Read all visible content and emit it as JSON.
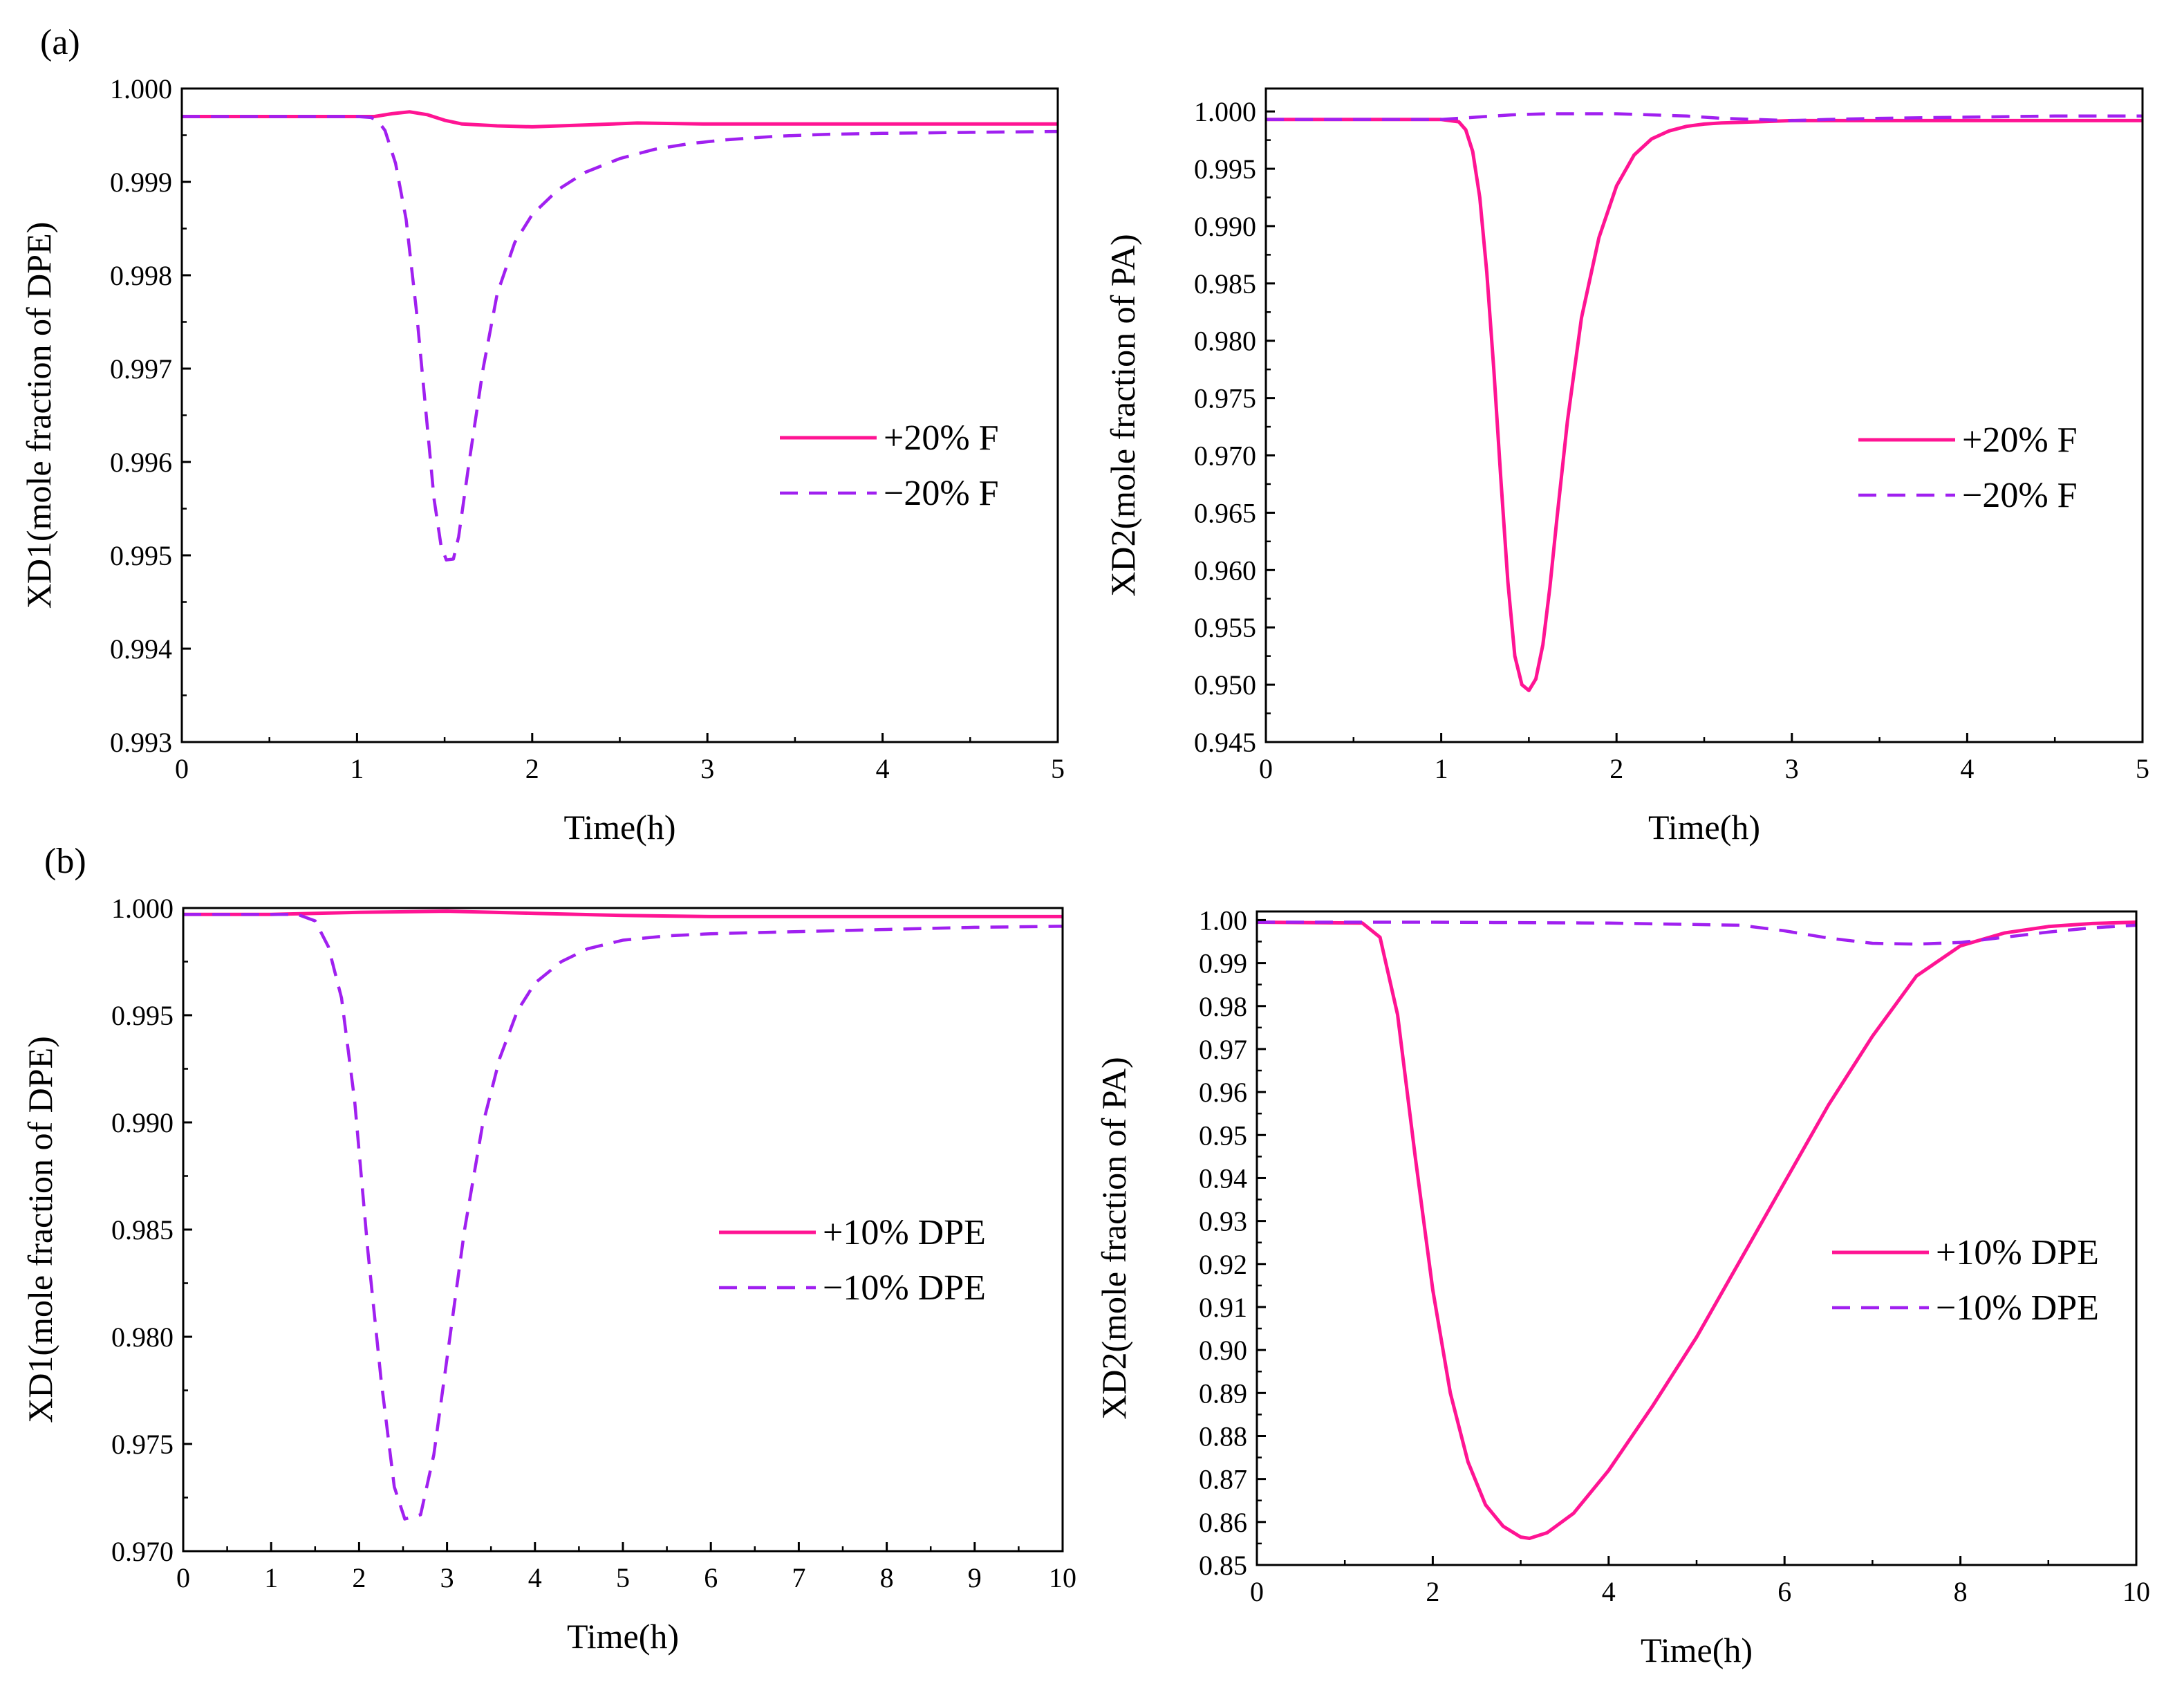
{
  "figure": {
    "panel_labels": [
      "(a)",
      "(b)"
    ]
  },
  "colors": {
    "solid": "#ff1493",
    "dashed": "#a020f0",
    "axis": "#000000"
  },
  "chart_data": [
    {
      "id": "a-left",
      "type": "line",
      "xlabel": "Time(h)",
      "ylabel": "XD1(mole fraction of  DPE)",
      "xlim": [
        0,
        5
      ],
      "ylim": [
        0.993,
        1.0
      ],
      "xticks": [
        0,
        1,
        2,
        3,
        4,
        5
      ],
      "xtick_labels": [
        "0",
        "1",
        "2",
        "3",
        "4",
        "5"
      ],
      "yticks": [
        0.993,
        0.994,
        0.995,
        0.996,
        0.997,
        0.998,
        0.999,
        1.0
      ],
      "ytick_labels": [
        "0.993",
        "0.994",
        "0.995",
        "0.996",
        "0.997",
        "0.998",
        "0.999",
        "1.000"
      ],
      "legend_position": "center-right",
      "series": [
        {
          "name": "+20% F",
          "style": "solid",
          "x": [
            0,
            1.0,
            1.1,
            1.2,
            1.3,
            1.4,
            1.5,
            1.6,
            1.8,
            2.0,
            2.3,
            2.6,
            3.0,
            3.5,
            4.0,
            5.0
          ],
          "y": [
            0.9997,
            0.9997,
            0.9997,
            0.99973,
            0.99975,
            0.99972,
            0.99966,
            0.99962,
            0.9996,
            0.99959,
            0.99961,
            0.99963,
            0.99962,
            0.99962,
            0.99962,
            0.99962
          ]
        },
        {
          "name": "−20% F",
          "style": "dashed",
          "x": [
            0,
            1.0,
            1.08,
            1.12,
            1.16,
            1.22,
            1.28,
            1.34,
            1.4,
            1.44,
            1.48,
            1.51,
            1.55,
            1.58,
            1.64,
            1.72,
            1.8,
            1.9,
            2.0,
            2.15,
            2.3,
            2.5,
            2.7,
            2.9,
            3.1,
            3.4,
            3.7,
            4.0,
            4.5,
            5.0
          ],
          "y": [
            0.9997,
            0.9997,
            0.99969,
            0.99965,
            0.99955,
            0.9992,
            0.9986,
            0.9976,
            0.9964,
            0.9956,
            0.9951,
            0.99495,
            0.99496,
            0.9952,
            0.996,
            0.997,
            0.9978,
            0.99835,
            0.99865,
            0.99892,
            0.9991,
            0.99925,
            0.99935,
            0.99941,
            0.99945,
            0.99949,
            0.99951,
            0.99952,
            0.99953,
            0.99954
          ]
        }
      ]
    },
    {
      "id": "a-right",
      "type": "line",
      "xlabel": "Time(h)",
      "ylabel": "XD2(mole fraction of  PA)",
      "xlim": [
        0,
        5
      ],
      "ylim": [
        0.945,
        1.002
      ],
      "xticks": [
        0,
        1,
        2,
        3,
        4,
        5
      ],
      "xtick_labels": [
        "0",
        "1",
        "2",
        "3",
        "4",
        "5"
      ],
      "yticks": [
        0.945,
        0.95,
        0.955,
        0.96,
        0.965,
        0.97,
        0.975,
        0.98,
        0.985,
        0.99,
        0.995,
        1.0
      ],
      "ytick_labels": [
        "0.945",
        "0.950",
        "0.955",
        "0.960",
        "0.965",
        "0.970",
        "0.975",
        "0.980",
        "0.985",
        "0.990",
        "0.995",
        "1.000"
      ],
      "legend_position": "center-right",
      "series": [
        {
          "name": "+20% F",
          "style": "solid",
          "x": [
            0,
            1.0,
            1.1,
            1.14,
            1.18,
            1.22,
            1.26,
            1.3,
            1.34,
            1.38,
            1.42,
            1.46,
            1.5,
            1.54,
            1.58,
            1.62,
            1.66,
            1.72,
            1.8,
            1.9,
            2.0,
            2.1,
            2.2,
            2.3,
            2.4,
            2.5,
            2.6,
            2.8,
            3.0,
            3.5,
            4.0,
            5.0
          ],
          "y": [
            0.9993,
            0.9993,
            0.9991,
            0.9984,
            0.9965,
            0.9925,
            0.986,
            0.9775,
            0.968,
            0.959,
            0.9525,
            0.95,
            0.9495,
            0.9505,
            0.9535,
            0.9585,
            0.9645,
            0.973,
            0.982,
            0.989,
            0.9935,
            0.9962,
            0.9976,
            0.9983,
            0.9987,
            0.9989,
            0.999,
            0.9991,
            0.9992,
            0.9992,
            0.9992,
            0.9992
          ]
        },
        {
          "name": "−20% F",
          "style": "dashed",
          "x": [
            0,
            1.0,
            1.2,
            1.4,
            1.6,
            1.8,
            2.0,
            2.2,
            2.4,
            2.6,
            2.8,
            3.0,
            3.2,
            3.5,
            4.0,
            4.5,
            5.0
          ],
          "y": [
            0.9993,
            0.9993,
            0.9995,
            0.9997,
            0.9998,
            0.9998,
            0.9998,
            0.9997,
            0.9996,
            0.9994,
            0.9993,
            0.9992,
            0.9993,
            0.9994,
            0.9995,
            0.9996,
            0.9996
          ]
        }
      ]
    },
    {
      "id": "b-left",
      "type": "line",
      "xlabel": "Time(h)",
      "ylabel": "XD1(mole fraction of  DPE)",
      "xlim": [
        0,
        10
      ],
      "ylim": [
        0.97,
        1.0
      ],
      "xticks": [
        0,
        1,
        2,
        3,
        4,
        5,
        6,
        7,
        8,
        9,
        10
      ],
      "xtick_labels": [
        "0",
        "1",
        "2",
        "3",
        "4",
        "5",
        "6",
        "7",
        "8",
        "9",
        "10"
      ],
      "yticks": [
        0.97,
        0.975,
        0.98,
        0.985,
        0.99,
        0.995,
        1.0
      ],
      "ytick_labels": [
        "0.970",
        "0.975",
        "0.980",
        "0.985",
        "0.990",
        "0.995",
        "1.000"
      ],
      "legend_position": "center-right",
      "series": [
        {
          "name": "+10% DPE",
          "style": "solid",
          "x": [
            0,
            1.0,
            2.0,
            3.0,
            4.0,
            5.0,
            6.0,
            8.0,
            10.0
          ],
          "y": [
            0.9997,
            0.9997,
            0.9998,
            0.99985,
            0.99975,
            0.99965,
            0.9996,
            0.9996,
            0.9996
          ]
        },
        {
          "name": "−10% DPE",
          "style": "dashed",
          "x": [
            0,
            1.3,
            1.5,
            1.65,
            1.8,
            1.95,
            2.1,
            2.25,
            2.4,
            2.52,
            2.7,
            2.85,
            3.0,
            3.2,
            3.4,
            3.6,
            3.8,
            4.0,
            4.3,
            4.6,
            5.0,
            5.5,
            6.0,
            7.0,
            8.0,
            9.0,
            10.0
          ],
          "y": [
            0.9997,
            0.9997,
            0.9994,
            0.9982,
            0.9958,
            0.991,
            0.984,
            0.978,
            0.973,
            0.9715,
            0.9717,
            0.9745,
            0.979,
            0.985,
            0.9898,
            0.993,
            0.9952,
            0.9965,
            0.9975,
            0.9981,
            0.9985,
            0.9987,
            0.9988,
            0.9989,
            0.999,
            0.9991,
            0.99915
          ]
        }
      ]
    },
    {
      "id": "b-right",
      "type": "line",
      "xlabel": "Time(h)",
      "ylabel": "XD2(mole fraction of  PA)",
      "xlim": [
        0,
        10
      ],
      "ylim": [
        0.85,
        1.002
      ],
      "xticks": [
        0,
        2,
        4,
        6,
        8,
        10
      ],
      "xtick_labels": [
        "0",
        "2",
        "4",
        "6",
        "8",
        "10"
      ],
      "yticks": [
        0.85,
        0.86,
        0.87,
        0.88,
        0.89,
        0.9,
        0.91,
        0.92,
        0.93,
        0.94,
        0.95,
        0.96,
        0.97,
        0.98,
        0.99,
        1.0
      ],
      "ytick_labels": [
        "0.85",
        "0.86",
        "0.87",
        "0.88",
        "0.89",
        "0.90",
        "0.91",
        "0.92",
        "0.93",
        "0.94",
        "0.95",
        "0.96",
        "0.97",
        "0.98",
        "0.99",
        "1.00"
      ],
      "legend_position": "center-right",
      "series": [
        {
          "name": "+10% DPE",
          "style": "solid",
          "x": [
            0,
            1.2,
            1.4,
            1.6,
            1.8,
            2.0,
            2.2,
            2.4,
            2.6,
            2.8,
            3.0,
            3.1,
            3.3,
            3.6,
            4.0,
            4.5,
            5.0,
            5.5,
            6.0,
            6.5,
            7.0,
            7.5,
            8.0,
            8.5,
            9.0,
            9.5,
            10.0
          ],
          "y": [
            0.9995,
            0.9993,
            0.996,
            0.978,
            0.945,
            0.914,
            0.89,
            0.874,
            0.864,
            0.859,
            0.8565,
            0.8562,
            0.8575,
            0.862,
            0.872,
            0.887,
            0.903,
            0.921,
            0.939,
            0.957,
            0.973,
            0.987,
            0.994,
            0.997,
            0.9985,
            0.9992,
            0.9995
          ]
        },
        {
          "name": "−10% DPE",
          "style": "dashed",
          "x": [
            0,
            2.0,
            4.0,
            5.5,
            6.0,
            6.5,
            7.0,
            7.5,
            8.0,
            8.5,
            9.0,
            9.5,
            10.0
          ],
          "y": [
            0.9995,
            0.9995,
            0.9993,
            0.9988,
            0.9975,
            0.9958,
            0.9946,
            0.9944,
            0.9948,
            0.996,
            0.9972,
            0.9982,
            0.9988
          ]
        }
      ]
    }
  ]
}
